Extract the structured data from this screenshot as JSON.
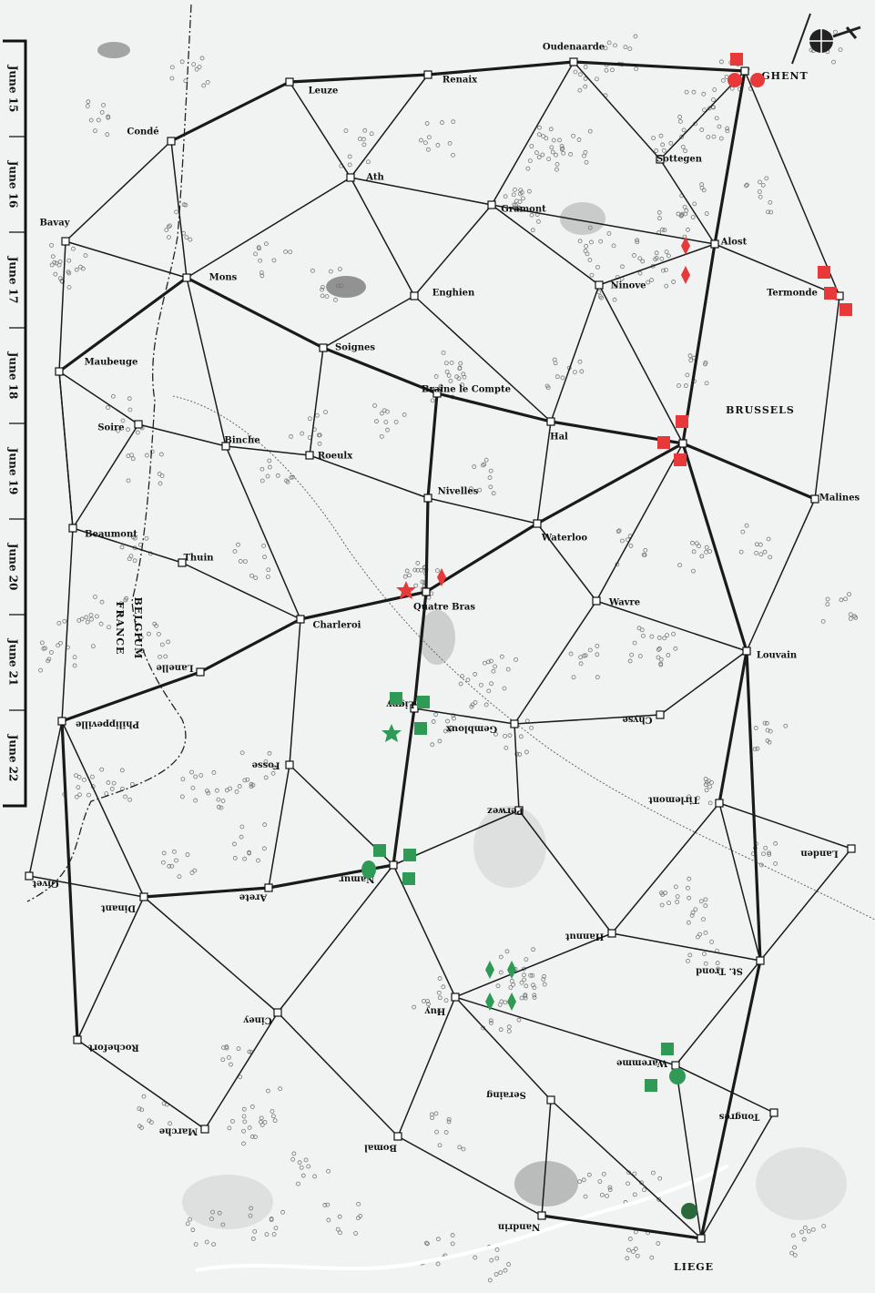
{
  "turn_track": [
    "June 15",
    "June 16",
    "June 17",
    "June 18",
    "June 19",
    "June 20",
    "June 21",
    "June 22"
  ],
  "towns": [
    "Oudenaarde",
    "GHENT",
    "Leuze",
    "Renaix",
    "Condé",
    "Ath",
    "Sottegen",
    "Gramont",
    "Bavay",
    "Alost",
    "Mons",
    "Enghien",
    "Ninove",
    "Termonde",
    "Soignes",
    "Maubeuge",
    "Braine le Compte",
    "Hal",
    "BRUSSELS",
    "Soire",
    "Binche",
    "Roeulx",
    "Nivelles",
    "Malines",
    "Beaumont",
    "Waterloo",
    "Thuin",
    "Quatre Bras",
    "Wavre",
    "Charleroi",
    "Louvain",
    "Lanelle",
    "Ligny",
    "Gembloux",
    "Chyse",
    "Philippeville",
    "Fosse",
    "Perwez",
    "Tirlemont",
    "Namur",
    "Givet",
    "Dinant",
    "Arete",
    "Landen",
    "Hannut",
    "St. Trond",
    "Huy",
    "Ciney",
    "Rochefort",
    "Waremme",
    "Tongres",
    "Seraing",
    "Marche",
    "Bomal",
    "Nandrin",
    "LIEGE"
  ],
  "border_labels": [
    "FRANCE",
    "BELGIUM"
  ]
}
